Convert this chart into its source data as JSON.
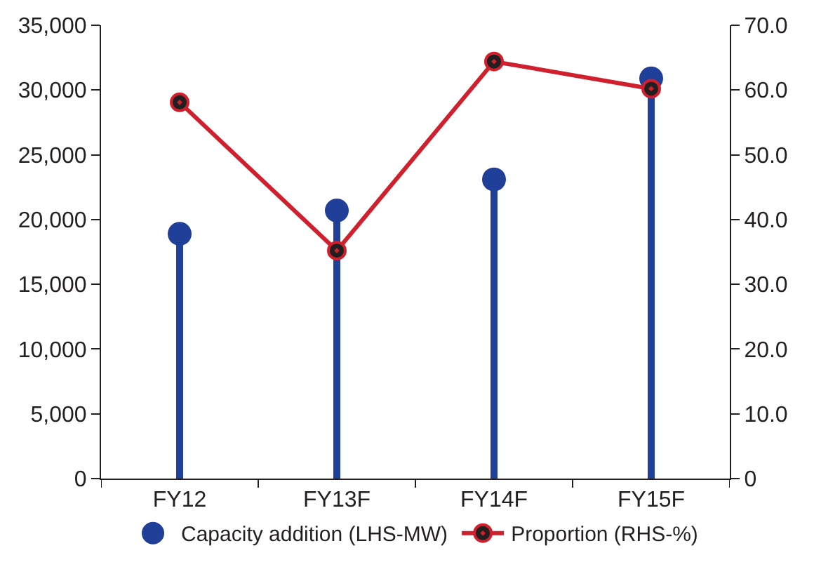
{
  "chart_data": {
    "type": "lollipop",
    "categories": [
      "FY12",
      "FY13F",
      "FY14F",
      "FY15F"
    ],
    "series": [
      {
        "name": "Capacity addition (LHS-MW)",
        "color": "#1f3f99",
        "values": [
          18900,
          20700,
          23100,
          30900
        ]
      },
      {
        "name": "Proportion (RHS-%)",
        "type": "line",
        "axis": "y2",
        "color": "#d0202e",
        "marker": "circle",
        "values": [
          58.1,
          35.2,
          64.4,
          60.2
        ]
      }
    ],
    "ylim": [
      0,
      35000
    ],
    "yticks": [
      {
        "value": 0,
        "label": "0"
      },
      {
        "value": 5000,
        "label": "5,000"
      },
      {
        "value": 10000,
        "label": "10,000"
      },
      {
        "value": 15000,
        "label": "15,000"
      },
      {
        "value": 20000,
        "label": "20,000"
      },
      {
        "value": 25000,
        "label": "25,000"
      },
      {
        "value": 30000,
        "label": "30,000"
      },
      {
        "value": 35000,
        "label": "35,000"
      }
    ],
    "y2lim": [
      0,
      70
    ],
    "y2ticks": [
      {
        "value": 0,
        "label": "0"
      },
      {
        "value": 10,
        "label": "10.0"
      },
      {
        "value": 20,
        "label": "20.0"
      },
      {
        "value": 30,
        "label": "30.0"
      },
      {
        "value": 40,
        "label": "40.0"
      },
      {
        "value": 50,
        "label": "50.0"
      },
      {
        "value": 60,
        "label": "60.0"
      },
      {
        "value": 70,
        "label": "70.0"
      }
    ],
    "legend": "bottom"
  }
}
